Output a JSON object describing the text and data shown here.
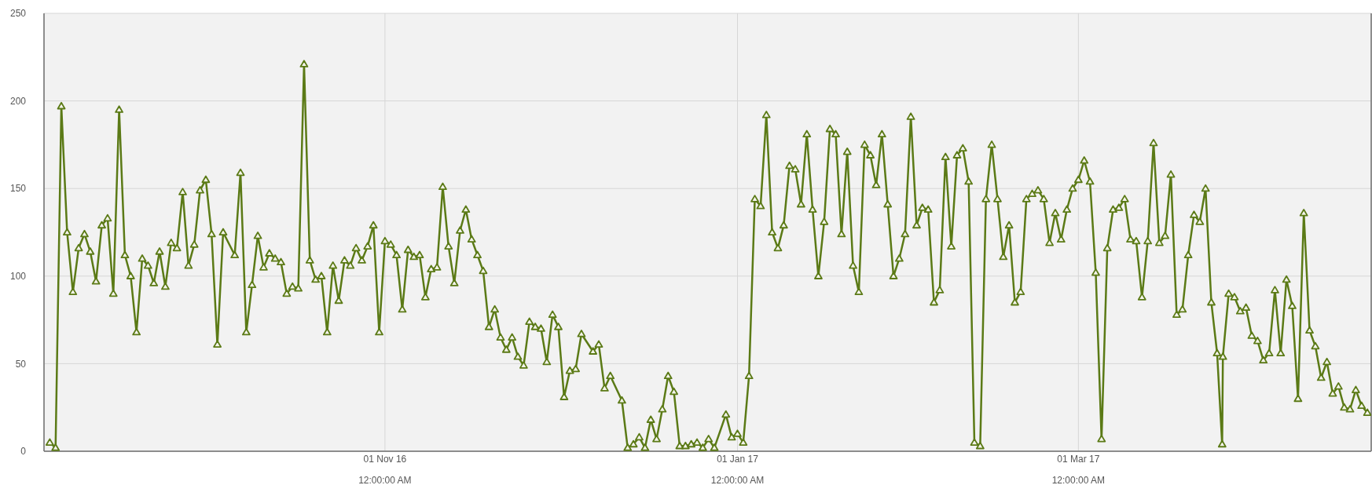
{
  "chart_data": {
    "type": "line",
    "x": [
      "2016-09-04",
      "2016-09-05",
      "2016-09-06",
      "2016-09-07",
      "2016-09-08",
      "2016-09-09",
      "2016-09-10",
      "2016-09-11",
      "2016-09-12",
      "2016-09-13",
      "2016-09-14",
      "2016-09-15",
      "2016-09-16",
      "2016-09-17",
      "2016-09-18",
      "2016-09-19",
      "2016-09-20",
      "2016-09-21",
      "2016-09-22",
      "2016-09-23",
      "2016-09-24",
      "2016-09-25",
      "2016-09-26",
      "2016-09-27",
      "2016-09-28",
      "2016-09-29",
      "2016-09-30",
      "2016-10-01",
      "2016-10-02",
      "2016-10-03",
      "2016-10-04",
      "2016-10-06",
      "2016-10-07",
      "2016-10-08",
      "2016-10-09",
      "2016-10-10",
      "2016-10-11",
      "2016-10-12",
      "2016-10-13",
      "2016-10-14",
      "2016-10-15",
      "2016-10-16",
      "2016-10-17",
      "2016-10-18",
      "2016-10-19",
      "2016-10-20",
      "2016-10-21",
      "2016-10-22",
      "2016-10-23",
      "2016-10-24",
      "2016-10-25",
      "2016-10-26",
      "2016-10-27",
      "2016-10-28",
      "2016-10-29",
      "2016-10-30",
      "2016-10-31",
      "2016-11-01",
      "2016-11-02",
      "2016-11-03",
      "2016-11-04",
      "2016-11-05",
      "2016-11-06",
      "2016-11-07",
      "2016-11-08",
      "2016-11-09",
      "2016-11-10",
      "2016-11-11",
      "2016-11-12",
      "2016-11-13",
      "2016-11-14",
      "2016-11-15",
      "2016-11-16",
      "2016-11-17",
      "2016-11-18",
      "2016-11-19",
      "2016-11-20",
      "2016-11-21",
      "2016-11-22",
      "2016-11-23",
      "2016-11-24",
      "2016-11-25",
      "2016-11-26",
      "2016-11-27",
      "2016-11-28",
      "2016-11-29",
      "2016-11-30",
      "2016-12-01",
      "2016-12-02",
      "2016-12-03",
      "2016-12-04",
      "2016-12-05",
      "2016-12-07",
      "2016-12-08",
      "2016-12-09",
      "2016-12-10",
      "2016-12-12",
      "2016-12-13",
      "2016-12-14",
      "2016-12-15",
      "2016-12-16",
      "2016-12-17",
      "2016-12-18",
      "2016-12-19",
      "2016-12-20",
      "2016-12-21",
      "2016-12-22",
      "2016-12-23",
      "2016-12-24",
      "2016-12-25",
      "2016-12-26",
      "2016-12-27",
      "2016-12-28",
      "2016-12-30",
      "2016-12-31",
      "2017-01-01",
      "2017-01-02",
      "2017-01-03",
      "2017-01-04",
      "2017-01-05",
      "2017-01-06",
      "2017-01-07",
      "2017-01-08",
      "2017-01-09",
      "2017-01-10",
      "2017-01-11",
      "2017-01-12",
      "2017-01-13",
      "2017-01-14",
      "2017-01-15",
      "2017-01-16",
      "2017-01-17",
      "2017-01-18",
      "2017-01-19",
      "2017-01-20",
      "2017-01-21",
      "2017-01-22",
      "2017-01-23",
      "2017-01-24",
      "2017-01-25",
      "2017-01-26",
      "2017-01-27",
      "2017-01-28",
      "2017-01-29",
      "2017-01-30",
      "2017-01-31",
      "2017-02-01",
      "2017-02-02",
      "2017-02-03",
      "2017-02-04",
      "2017-02-05",
      "2017-02-06",
      "2017-02-07",
      "2017-02-08",
      "2017-02-09",
      "2017-02-10",
      "2017-02-11",
      "2017-02-12",
      "2017-02-13",
      "2017-02-14",
      "2017-02-15",
      "2017-02-16",
      "2017-02-17",
      "2017-02-18",
      "2017-02-19",
      "2017-02-20",
      "2017-02-21",
      "2017-02-22",
      "2017-02-23",
      "2017-02-24",
      "2017-02-25",
      "2017-02-26",
      "2017-02-27",
      "2017-02-28",
      "2017-03-01",
      "2017-03-02",
      "2017-03-03",
      "2017-03-04",
      "2017-03-05",
      "2017-03-06",
      "2017-03-07",
      "2017-03-08",
      "2017-03-09",
      "2017-03-10",
      "2017-03-11",
      "2017-03-12",
      "2017-03-13",
      "2017-03-14",
      "2017-03-15",
      "2017-03-16",
      "2017-03-17",
      "2017-03-18",
      "2017-03-19",
      "2017-03-20",
      "2017-03-21",
      "2017-03-22",
      "2017-03-23",
      "2017-03-24",
      "2017-03-25",
      "2017-03-25T21:00",
      "2017-03-26",
      "2017-03-27",
      "2017-03-28",
      "2017-03-29",
      "2017-03-30",
      "2017-03-31",
      "2017-04-01",
      "2017-04-02",
      "2017-04-03",
      "2017-04-04",
      "2017-04-05",
      "2017-04-06",
      "2017-04-07",
      "2017-04-08",
      "2017-04-09",
      "2017-04-10",
      "2017-04-11",
      "2017-04-12",
      "2017-04-13",
      "2017-04-14",
      "2017-04-15",
      "2017-04-16",
      "2017-04-17",
      "2017-04-18",
      "2017-04-19",
      "2017-04-20"
    ],
    "series": [
      {
        "color": "#5b7a16",
        "values": [
          5,
          2,
          197,
          125,
          91,
          116,
          124,
          114,
          97,
          129,
          133,
          90,
          195,
          112,
          100,
          68,
          110,
          106,
          96,
          114,
          94,
          119,
          116,
          148,
          106,
          118,
          149,
          155,
          124,
          61,
          125,
          112,
          159,
          68,
          95,
          123,
          105,
          113,
          110,
          108,
          90,
          94,
          93,
          221,
          109,
          98,
          100,
          68,
          106,
          86,
          109,
          106,
          116,
          109,
          117,
          129,
          68,
          120,
          118,
          112,
          81,
          115,
          111,
          112,
          88,
          104,
          105,
          151,
          117,
          96,
          126,
          138,
          121,
          112,
          103,
          71,
          81,
          65,
          58,
          65,
          54,
          49,
          74,
          71,
          70,
          51,
          78,
          71,
          31,
          46,
          47,
          67,
          57,
          61,
          36,
          43,
          29,
          2,
          4,
          8,
          2,
          18,
          7,
          24,
          43,
          34,
          3,
          3,
          4,
          5,
          2,
          7,
          2,
          21,
          8,
          10,
          5,
          43,
          144,
          140,
          192,
          125,
          116,
          129,
          163,
          161,
          141,
          181,
          138,
          100,
          131,
          184,
          181,
          124,
          171,
          106,
          91,
          175,
          169,
          152,
          181,
          141,
          100,
          110,
          124,
          191,
          129,
          139,
          138,
          85,
          92,
          168,
          117,
          169,
          173,
          154,
          5,
          3,
          144,
          175,
          144,
          111,
          129,
          85,
          91,
          144,
          147,
          149,
          144,
          119,
          136,
          121,
          138,
          150,
          155,
          166,
          154,
          102,
          7,
          116,
          138,
          139,
          144,
          121,
          120,
          88,
          120,
          176,
          119,
          123,
          158,
          78,
          81,
          112,
          135,
          131,
          150,
          85,
          56,
          4,
          54,
          90,
          88,
          80,
          82,
          66,
          63,
          52,
          56,
          92,
          56,
          98,
          83,
          30,
          136,
          69,
          60,
          42,
          51,
          33,
          37,
          25,
          24,
          35,
          26,
          22
        ]
      }
    ],
    "xlim": [
      "2016-09-03",
      "2017-04-20T16:00"
    ],
    "xticks": [
      {
        "value": "2016-11-01",
        "label": "01 Nov 16\n12:00:00 AM"
      },
      {
        "value": "2017-01-01",
        "label": "01 Jan 17\n12:00:00 AM"
      },
      {
        "value": "2017-03-01",
        "label": "01 Mar 17\n12:00:00 AM"
      }
    ],
    "ylim": [
      0,
      250
    ],
    "yticks": [
      0,
      50,
      100,
      150,
      200,
      250
    ],
    "grid": true,
    "marker": "triangle",
    "line_style": "solid"
  }
}
